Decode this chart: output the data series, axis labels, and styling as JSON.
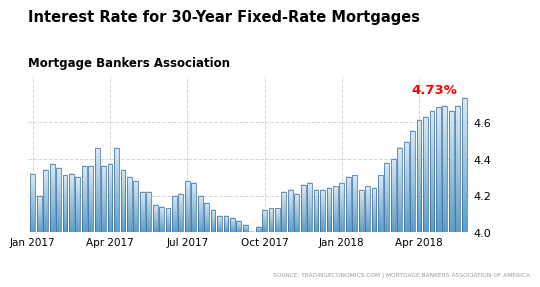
{
  "title": "Interest Rate for 30-Year Fixed-Rate Mortgages",
  "subtitle": "Mortgage Bankers Association",
  "source_text": "SOURCE: TRADINGECONOMICS.COM | MORTGAGE BANKERS ASSOCIATION OF AMERICA",
  "last_value_label": "4.73%",
  "last_value_color": "#ff0000",
  "background_color": "#ffffff",
  "bar_color_top": "#5b9ec9",
  "bar_color_bottom": "#daeaf5",
  "bar_edge_color": "#3a6a99",
  "ylim": [
    4.0,
    4.85
  ],
  "yticks": [
    4.0,
    4.2,
    4.4,
    4.6
  ],
  "values": [
    4.32,
    4.2,
    4.34,
    4.37,
    4.35,
    4.31,
    4.32,
    4.3,
    4.36,
    4.36,
    4.46,
    4.36,
    4.37,
    4.46,
    4.34,
    4.3,
    4.28,
    4.22,
    4.22,
    4.15,
    4.14,
    4.13,
    4.2,
    4.21,
    4.28,
    4.27,
    4.2,
    4.16,
    4.12,
    4.09,
    4.09,
    4.08,
    4.06,
    4.04,
    3.97,
    4.03,
    4.12,
    4.13,
    4.13,
    4.22,
    4.23,
    4.21,
    4.26,
    4.27,
    4.23,
    4.23,
    4.24,
    4.25,
    4.27,
    4.3,
    4.31,
    4.23,
    4.25,
    4.24,
    4.31,
    4.38,
    4.4,
    4.46,
    4.49,
    4.55,
    4.61,
    4.63,
    4.66,
    4.68,
    4.69,
    4.66,
    4.69,
    4.73
  ],
  "x_tick_positions": [
    0,
    12,
    24,
    36,
    48,
    60
  ],
  "x_tick_labels": [
    "Jan 2017",
    "Apr 2017",
    "Jul 2017",
    "Oct 2017",
    "Jan 2018",
    "Apr 2018"
  ],
  "grid_color": "#cccccc",
  "grid_linestyle": "--",
  "grid_alpha": 0.8
}
